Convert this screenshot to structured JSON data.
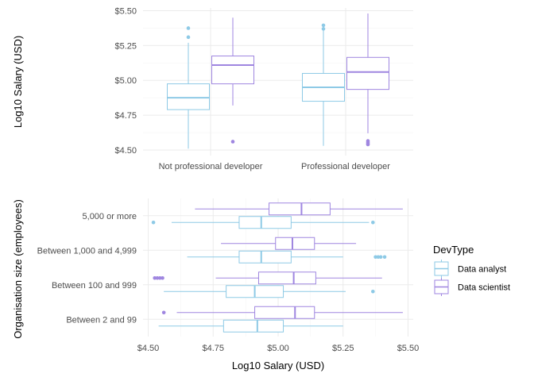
{
  "chart_data": [
    {
      "type": "boxplot",
      "orientation": "vertical",
      "ylabel": "Log10 Salary (USD)",
      "xlabel": "",
      "ylim": [
        4.46,
        5.52
      ],
      "y_ticks": [
        {
          "value": 4.5,
          "label": "$4.50"
        },
        {
          "value": 4.75,
          "label": "$4.75"
        },
        {
          "value": 5.0,
          "label": "$5.00"
        },
        {
          "value": 5.25,
          "label": "$5.25"
        },
        {
          "value": 5.5,
          "label": "$5.50"
        }
      ],
      "categories": [
        "Not professional developer",
        "Professional developer"
      ],
      "grid": true,
      "series": [
        {
          "name": "Data analyst",
          "color": "#8ecae6",
          "boxes": [
            {
              "category": "Not professional developer",
              "lower_whisker": 4.51,
              "q1": 4.79,
              "median": 4.875,
              "q3": 4.975,
              "upper_whisker": 5.27,
              "outliers": [
                5.31,
                5.375
              ]
            },
            {
              "category": "Professional developer",
              "lower_whisker": 4.53,
              "q1": 4.85,
              "median": 4.95,
              "q3": 5.05,
              "upper_whisker": 5.36,
              "outliers": [
                5.37,
                5.395
              ]
            }
          ]
        },
        {
          "name": "Data scientist",
          "color": "#9f86e0",
          "boxes": [
            {
              "category": "Not professional developer",
              "lower_whisker": 4.82,
              "q1": 4.975,
              "median": 5.11,
              "q3": 5.175,
              "upper_whisker": 5.45,
              "outliers": [
                4.56
              ]
            },
            {
              "category": "Professional developer",
              "lower_whisker": 4.62,
              "q1": 4.935,
              "median": 5.06,
              "q3": 5.165,
              "upper_whisker": 5.48,
              "outliers": [
                4.54,
                4.545,
                4.555,
                4.565
              ]
            }
          ]
        }
      ]
    },
    {
      "type": "boxplot",
      "orientation": "horizontal",
      "xlabel": "Log10 Salary (USD)",
      "ylabel": "Organisation size (employees)",
      "xlim": [
        4.48,
        5.52
      ],
      "x_ticks": [
        {
          "value": 4.5,
          "label": "$4.50"
        },
        {
          "value": 4.75,
          "label": "$4.75"
        },
        {
          "value": 5.0,
          "label": "$5.00"
        },
        {
          "value": 5.25,
          "label": "$5.25"
        },
        {
          "value": 5.5,
          "label": "$5.50"
        }
      ],
      "categories": [
        "5,000 or more",
        "Between 1,000 and 4,999",
        "Between 100 and 999",
        "Between 2 and 99"
      ],
      "grid": true,
      "series": [
        {
          "name": "Data analyst",
          "color": "#8ecae6",
          "boxes": [
            {
              "category": "5,000 or more",
              "lower_whisker": 4.59,
              "q1": 4.85,
              "median": 4.935,
              "q3": 5.05,
              "upper_whisker": 5.35,
              "outliers": [
                4.52,
                5.365
              ]
            },
            {
              "category": "Between 1,000 and 4,999",
              "lower_whisker": 4.65,
              "q1": 4.85,
              "median": 4.935,
              "q3": 5.05,
              "upper_whisker": 5.25,
              "outliers": [
                5.375,
                5.385,
                5.395,
                5.41
              ]
            },
            {
              "category": "Between 100 and 999",
              "lower_whisker": 4.56,
              "q1": 4.8,
              "median": 4.91,
              "q3": 5.02,
              "upper_whisker": 5.26,
              "outliers": [
                5.365
              ]
            },
            {
              "category": "Between 2 and 99",
              "lower_whisker": 4.54,
              "q1": 4.79,
              "median": 4.92,
              "q3": 5.02,
              "upper_whisker": 5.25,
              "outliers": []
            }
          ]
        },
        {
          "name": "Data scientist",
          "color": "#9f86e0",
          "boxes": [
            {
              "category": "5,000 or more",
              "lower_whisker": 4.68,
              "q1": 4.965,
              "median": 5.09,
              "q3": 5.2,
              "upper_whisker": 5.48,
              "outliers": []
            },
            {
              "category": "Between 1,000 and 4,999",
              "lower_whisker": 4.78,
              "q1": 4.99,
              "median": 5.055,
              "q3": 5.14,
              "upper_whisker": 5.3,
              "outliers": []
            },
            {
              "category": "Between 100 and 999",
              "lower_whisker": 4.76,
              "q1": 4.925,
              "median": 5.06,
              "q3": 5.145,
              "upper_whisker": 5.4,
              "outliers": [
                4.525,
                4.535,
                4.545,
                4.555
              ]
            },
            {
              "category": "Between 2 and 99",
              "lower_whisker": 4.61,
              "q1": 4.91,
              "median": 5.065,
              "q3": 5.14,
              "upper_whisker": 5.48,
              "outliers": [
                4.56
              ]
            }
          ]
        }
      ]
    }
  ],
  "legend": {
    "title": "DevType",
    "placement": "right",
    "items": [
      {
        "label": "Data analyst",
        "color": "#8ecae6"
      },
      {
        "label": "Data scientist",
        "color": "#9f86e0"
      }
    ]
  }
}
